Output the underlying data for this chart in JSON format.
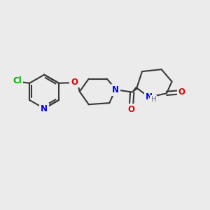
{
  "bg_color": "#ebebeb",
  "bond_color": "#383838",
  "bond_width": 1.5,
  "atom_colors": {
    "N": "#0000ee",
    "O": "#dd0000",
    "Cl": "#00aa00",
    "C": "#383838",
    "H": "#777777"
  },
  "font_size": 8.5,
  "fig_size": [
    3.0,
    3.0
  ],
  "dpi": 100,
  "xlim": [
    0,
    10
  ],
  "ylim": [
    0,
    10
  ]
}
